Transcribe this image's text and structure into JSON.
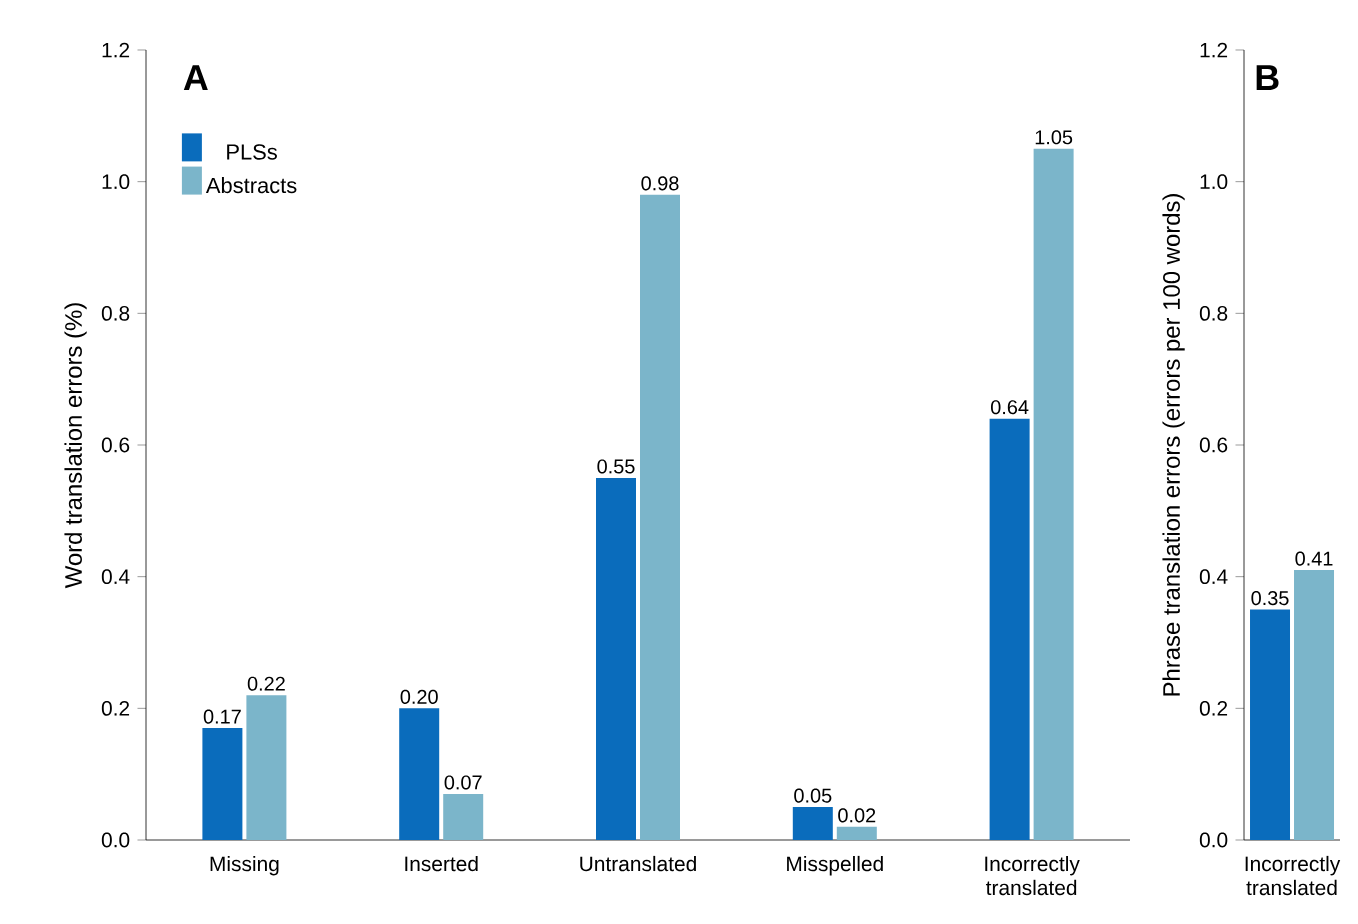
{
  "chart_data": [
    {
      "type": "bar",
      "title": "A",
      "ylabel": "Word translation errors (%)",
      "categories": [
        "Missing",
        "Inserted",
        "Untranslated",
        "Misspelled",
        "Incorrectly translated"
      ],
      "series": [
        {
          "name": "PLSs",
          "color": "#0a6cbc",
          "values": [
            0.17,
            0.2,
            0.55,
            0.05,
            0.64
          ],
          "value_labels": [
            "0.17",
            "0.20",
            "0.55",
            "0.05",
            "0.64"
          ]
        },
        {
          "name": "Abstracts",
          "color": "#7bb5ca",
          "values": [
            0.22,
            0.07,
            0.98,
            0.02,
            1.05
          ],
          "value_labels": [
            "0.22",
            "0.07",
            "0.98",
            "0.02",
            "1.05"
          ]
        }
      ],
      "ylim": [
        0,
        1.2
      ],
      "yticks": [
        {
          "value": 0,
          "label": "0.0"
        },
        {
          "value": 0.2,
          "label": "0.2"
        },
        {
          "value": 0.4,
          "label": "0.4"
        },
        {
          "value": 0.6,
          "label": "0.6"
        },
        {
          "value": 0.8,
          "label": "0.8"
        },
        {
          "value": 1,
          "label": "1.0"
        },
        {
          "value": 1.2,
          "label": "1.2"
        }
      ],
      "legend": "top left",
      "grid": false
    },
    {
      "type": "bar",
      "title": "B",
      "ylabel": "Phrase translation errors (errors per 100 words)",
      "categories": [
        "Incorrectly translated"
      ],
      "series": [
        {
          "color": "#0a6cbc",
          "values": [
            0.35
          ],
          "value_labels": [
            "0.35"
          ]
        },
        {
          "color": "#7bb5ca",
          "values": [
            0.41
          ],
          "value_labels": [
            "0.41"
          ]
        }
      ],
      "ylim": [
        0,
        1.2
      ],
      "yticks": [
        {
          "value": 0,
          "label": "0.0"
        },
        {
          "value": 0.2,
          "label": "0.2"
        },
        {
          "value": 0.4,
          "label": "0.4"
        },
        {
          "value": 0.6,
          "label": "0.6"
        },
        {
          "value": 0.8,
          "label": "0.8"
        },
        {
          "value": 1,
          "label": "1.0"
        },
        {
          "value": 1.2,
          "label": "1.2"
        }
      ],
      "legend": false,
      "grid": false
    }
  ]
}
